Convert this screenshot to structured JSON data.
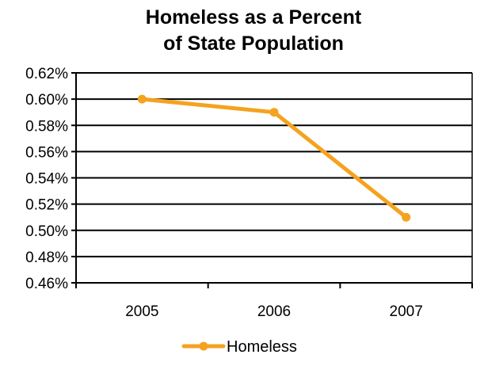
{
  "chart_data": {
    "type": "line",
    "title": [
      "Homeless as a Percent",
      "of State Population"
    ],
    "xlabel": "",
    "ylabel": "",
    "categories": [
      "2005",
      "2006",
      "2007"
    ],
    "series": [
      {
        "name": "Homeless",
        "values": [
          0.6,
          0.59,
          0.51
        ],
        "color": "#f5a21f"
      }
    ],
    "ylim": [
      0.46,
      0.62
    ],
    "yticks": [
      0.46,
      0.48,
      0.5,
      0.52,
      0.54,
      0.56,
      0.58,
      0.6,
      0.62
    ],
    "ytick_labels": [
      "0.46%",
      "0.48%",
      "0.50%",
      "0.52%",
      "0.54%",
      "0.56%",
      "0.58%",
      "0.60%",
      "0.62%"
    ],
    "grid": true,
    "legend": "bottom",
    "colors": {
      "series_line": "#f5a21f",
      "gridline": "#000000",
      "axis": "#000000"
    }
  }
}
